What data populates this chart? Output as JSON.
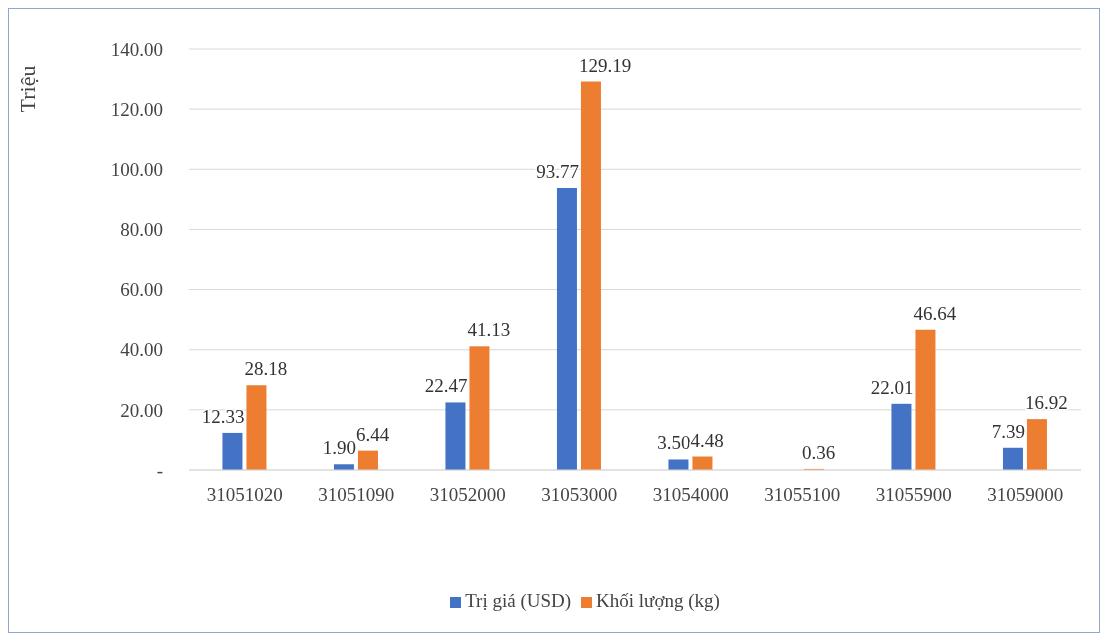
{
  "chart_data": {
    "type": "bar",
    "ylabel": "Triệu",
    "categories": [
      "31051020",
      "31051090",
      "31052000",
      "31053000",
      "31054000",
      "31055100",
      "31055900",
      "31059000"
    ],
    "series": [
      {
        "name": "Trị giá (USD)",
        "color": "#4472c4",
        "values": [
          12.33,
          1.9,
          22.47,
          93.77,
          3.5,
          null,
          22.01,
          7.39
        ],
        "value_labels": [
          "12.33",
          "1.90",
          "22.47",
          "93.77",
          "3.50",
          null,
          "22.01",
          "7.39"
        ]
      },
      {
        "name": "Khối lượng (kg)",
        "color": "#ed7d31",
        "values": [
          28.18,
          6.44,
          41.13,
          129.19,
          4.48,
          0.36,
          46.64,
          16.92
        ],
        "value_labels": [
          "28.18",
          "6.44",
          "41.13",
          "129.19",
          "4.48",
          "0.36",
          "46.64",
          "16.92"
        ]
      }
    ],
    "ylim": [
      0,
      140
    ],
    "yticks": [
      {
        "value": 0,
        "label": "-"
      },
      {
        "value": 20,
        "label": "20.00"
      },
      {
        "value": 40,
        "label": "40.00"
      },
      {
        "value": 60,
        "label": "60.00"
      },
      {
        "value": 80,
        "label": "80.00"
      },
      {
        "value": 100,
        "label": "100.00"
      },
      {
        "value": 120,
        "label": "120.00"
      },
      {
        "value": 140,
        "label": "140.00"
      }
    ],
    "grid": "y",
    "legend": "bottom"
  }
}
